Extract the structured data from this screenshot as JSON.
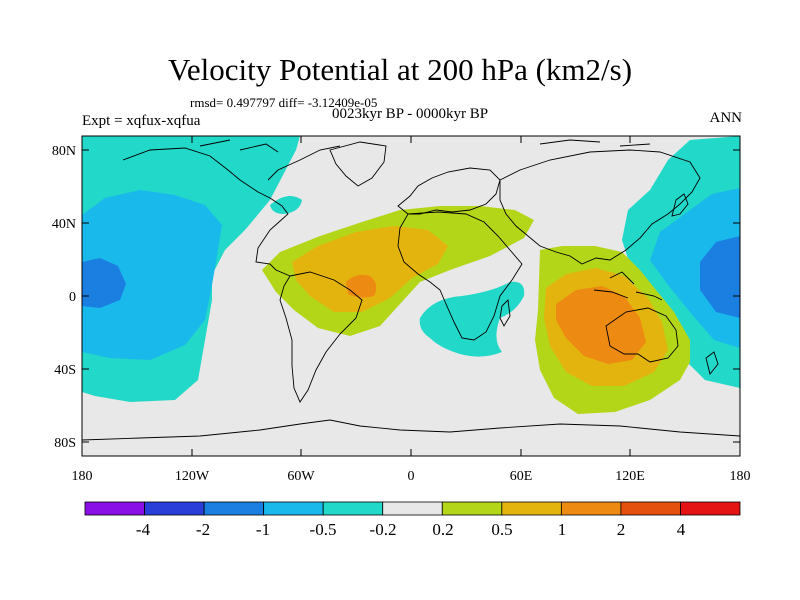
{
  "title": "Velocity Potential at 200 hPa (km2/s)",
  "stats": "rmsd= 0.497797 diff= -3.12409e-05",
  "experiment": "Expt = xqfux-xqfua",
  "period": "0023kyr BP - 0000kyr BP",
  "season": "ANN",
  "axes": {
    "x_labels": [
      "180",
      "120W",
      "60W",
      "0",
      "60E",
      "120E",
      "180"
    ],
    "y_labels": [
      "80N",
      "40N",
      "0",
      "40S",
      "80S"
    ]
  },
  "colorbar": {
    "labels": [
      "-4",
      "-2",
      "-1",
      "-0.5",
      "-0.2",
      "0.2",
      "0.5",
      "1",
      "2",
      "4"
    ],
    "colors": [
      "#8a0ee6",
      "#2a3fd8",
      "#1a7fe0",
      "#19b9ec",
      "#22d8c8",
      "#e8e8e8",
      "#b4d619",
      "#e4b40e",
      "#ec8a12",
      "#e4500e",
      "#e41414"
    ]
  },
  "palette": {
    "land_outline": "#000000",
    "neutral": "#e8e8e8"
  }
}
